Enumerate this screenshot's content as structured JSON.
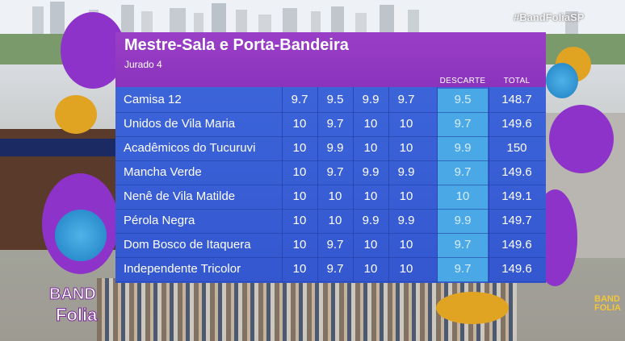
{
  "hashtag": "#BandFoliaSP",
  "logos": {
    "left_line1": "BAND",
    "left_line2": "Folia",
    "right_line1": "BAND",
    "right_line2": "FOLIA"
  },
  "colors": {
    "header": "#8b33bd",
    "rows": "#3457cf",
    "descarte": "#4aa8e6"
  },
  "scoreboard": {
    "title": "Mestre-Sala e Porta-Bandeira",
    "subtitle": "Jurado 4",
    "headers": {
      "descarte": "DESCARTE",
      "total": "TOTAL"
    },
    "rows": [
      {
        "team": "Camisa 12",
        "scores": [
          "9.7",
          "9.5",
          "9.9",
          "9.7"
        ],
        "descarte": "9.5",
        "total": "148.7"
      },
      {
        "team": "Unidos de Vila Maria",
        "scores": [
          "10",
          "9.7",
          "10",
          "10"
        ],
        "descarte": "9.7",
        "total": "149.6"
      },
      {
        "team": "Acadêmicos do Tucuruvi",
        "scores": [
          "10",
          "9.9",
          "10",
          "10"
        ],
        "descarte": "9.9",
        "total": "150"
      },
      {
        "team": "Mancha Verde",
        "scores": [
          "10",
          "9.7",
          "9.9",
          "9.9"
        ],
        "descarte": "9.7",
        "total": "149.6"
      },
      {
        "team": "Nenê de Vila Matilde",
        "scores": [
          "10",
          "10",
          "10",
          "10"
        ],
        "descarte": "10",
        "total": "149.1"
      },
      {
        "team": "Pérola Negra",
        "scores": [
          "10",
          "10",
          "9.9",
          "9.9"
        ],
        "descarte": "9.9",
        "total": "149.7"
      },
      {
        "team": "Dom Bosco de Itaquera",
        "scores": [
          "10",
          "9.7",
          "10",
          "10"
        ],
        "descarte": "9.7",
        "total": "149.6"
      },
      {
        "team": "Independente Tricolor",
        "scores": [
          "10",
          "9.7",
          "10",
          "10"
        ],
        "descarte": "9.7",
        "total": "149.6"
      }
    ]
  }
}
